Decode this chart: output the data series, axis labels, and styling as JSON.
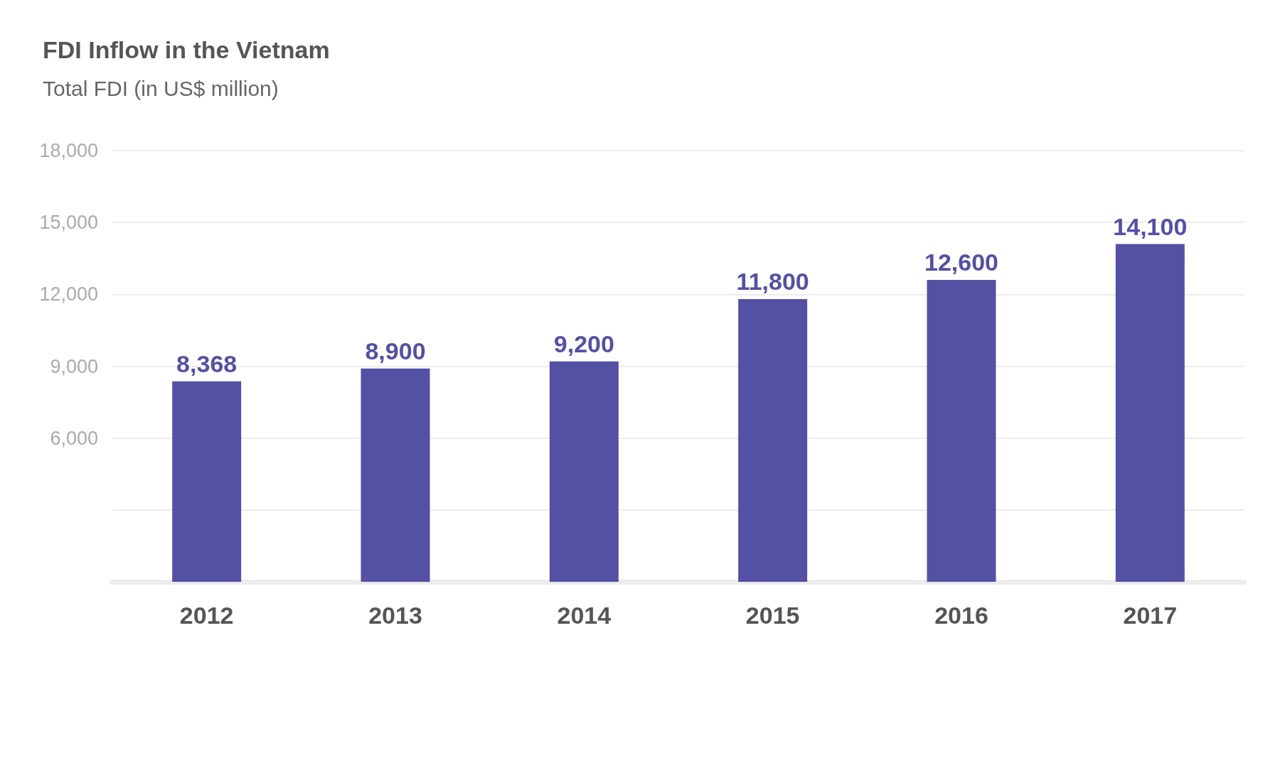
{
  "chart_data": {
    "type": "bar",
    "title": "FDI Inflow in the Vietnam",
    "ylabel": "Total FDI (in US$ million)",
    "categories": [
      "2012",
      "2013",
      "2014",
      "2015",
      "2016",
      "2017"
    ],
    "values": [
      8368,
      8900,
      9200,
      11800,
      12600,
      14100
    ],
    "color": "#5450a3",
    "value_labels": [
      "8,368",
      "8,900",
      "9,200",
      "11,800",
      "12,600",
      "14,100"
    ],
    "ylim": [
      0,
      18000
    ],
    "yticks": [
      {
        "value": 3000,
        "label": null
      },
      {
        "value": 6000,
        "label": "6,000"
      },
      {
        "value": 9000,
        "label": "9,000"
      },
      {
        "value": 12000,
        "label": "12,000"
      },
      {
        "value": 15000,
        "label": "15,000"
      },
      {
        "value": 18000,
        "label": "18,000"
      }
    ],
    "grid": "y"
  }
}
